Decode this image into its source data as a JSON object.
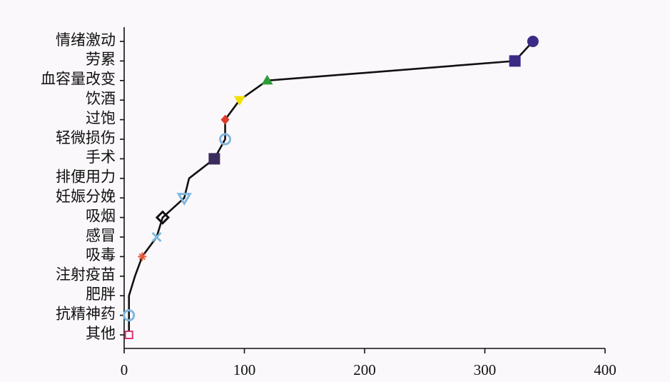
{
  "chart_data": {
    "type": "line",
    "categories": [
      "情绪激动",
      "劳累",
      "血容量改变",
      "饮酒",
      "过饱",
      "轻微损伤",
      "手术",
      "排便用力",
      "妊娠分娩",
      "吸烟",
      "感冒",
      "吸毒",
      "注射疫苗",
      "肥胖",
      "抗精神药",
      "其他"
    ],
    "values": [
      340,
      325,
      119,
      96,
      84,
      84,
      75,
      54,
      50,
      32,
      27,
      15,
      9,
      4,
      4,
      4
    ],
    "markers": [
      "circle",
      "square",
      "triangle-up",
      "triangle-down",
      "diamond",
      "ring",
      "square",
      null,
      "triangle-down-open",
      "diamond-open",
      "cross",
      "star",
      null,
      null,
      "ring",
      "square-open"
    ],
    "colors": [
      "#3b2b86",
      "#3b2b86",
      "#2e9b3a",
      "#f2e100",
      "#e03a2a",
      "#7fb8e0",
      "#3a2d5c",
      null,
      "#7fb8e0",
      "#111111",
      "#7fb8e0",
      "#e05a3a",
      null,
      null,
      "#7fb8e0",
      "#e0307a"
    ],
    "line_color": "#111111",
    "xlim": [
      0,
      400
    ],
    "xticks": [
      0,
      100,
      200,
      300,
      400
    ]
  }
}
